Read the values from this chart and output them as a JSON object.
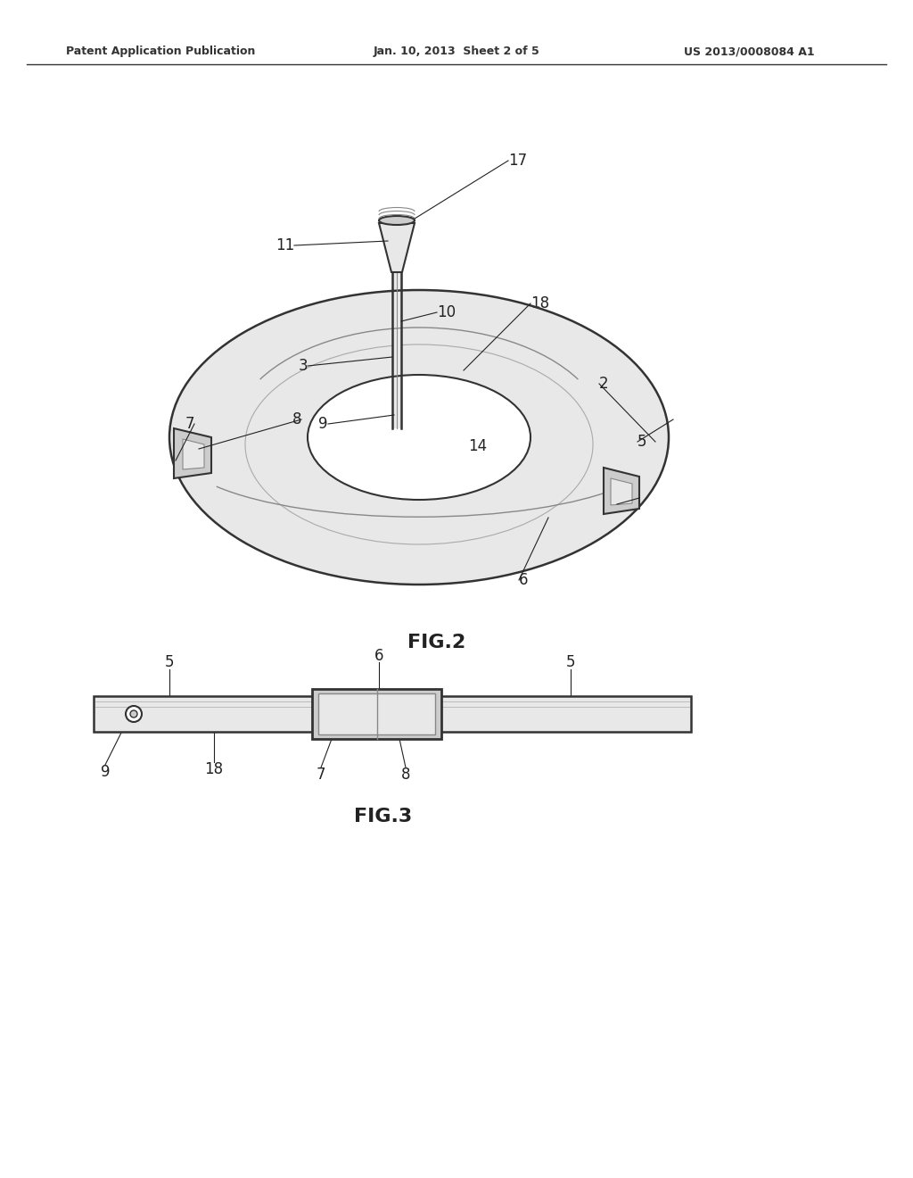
{
  "background_color": "#ffffff",
  "header_left": "Patent Application Publication",
  "header_center": "Jan. 10, 2013  Sheet 2 of 5",
  "header_right": "US 2013/0008084 A1",
  "fig2_label": "FIG.2",
  "fig3_label": "FIG.3",
  "line_color": "#333333",
  "light_gray": "#aaaaaa",
  "medium_gray": "#888888",
  "dark_gray": "#555555",
  "fill_gray": "#cccccc",
  "fill_light": "#e8e8e8",
  "fill_medium": "#bbbbbb"
}
